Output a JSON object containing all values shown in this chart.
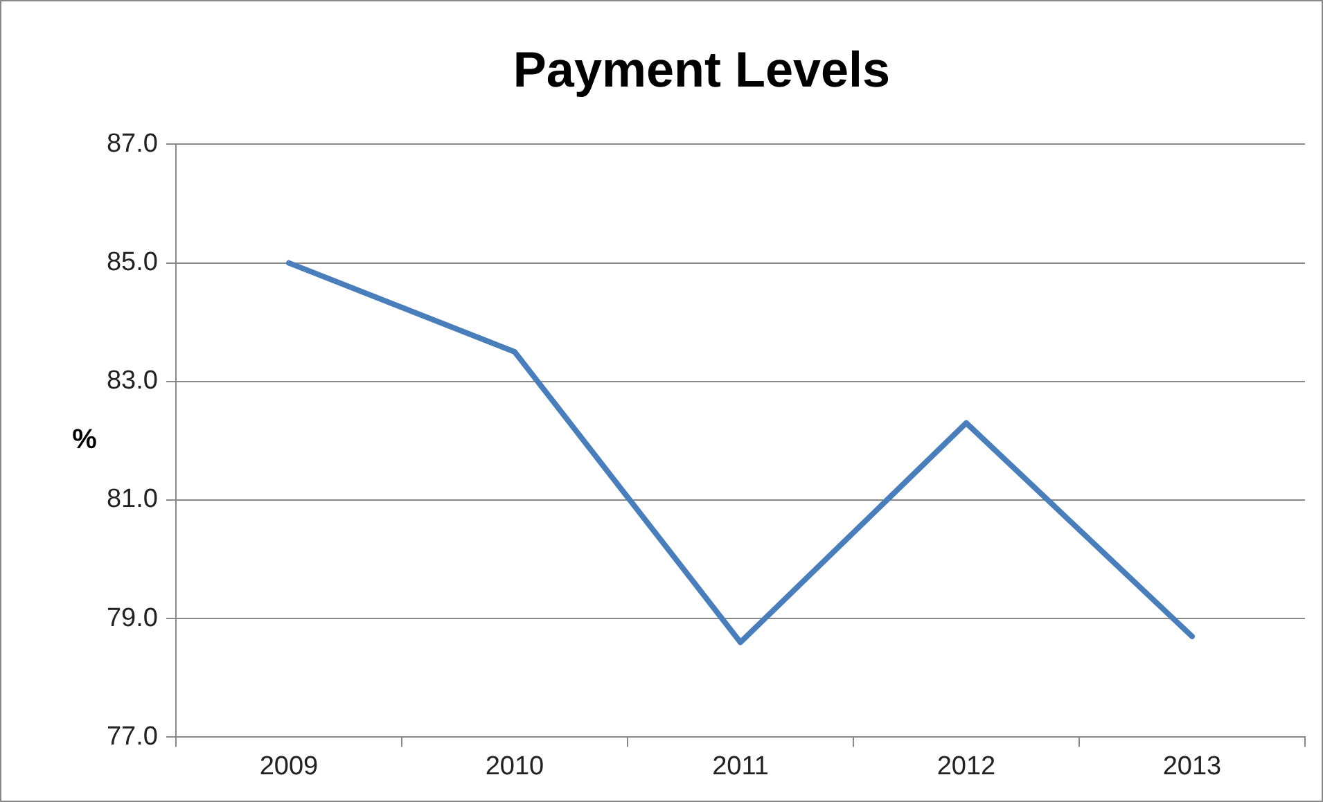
{
  "chart_data": {
    "type": "line",
    "title": "Payment Levels",
    "ylabel": "%",
    "categories": [
      "2009",
      "2010",
      "2011",
      "2012",
      "2013"
    ],
    "values": [
      85.0,
      83.5,
      78.6,
      82.3,
      78.7
    ],
    "color": "#4a7ebb",
    "ylim": [
      77,
      87
    ],
    "yticks": [
      {
        "value": 77,
        "label": "77.0"
      },
      {
        "value": 79,
        "label": "79.0"
      },
      {
        "value": 81,
        "label": "81.0"
      },
      {
        "value": 83,
        "label": "83.0"
      },
      {
        "value": 85,
        "label": "85.0"
      },
      {
        "value": 87,
        "label": "87.0"
      }
    ],
    "grid": "y",
    "marker": "none",
    "line_style": "solid"
  }
}
